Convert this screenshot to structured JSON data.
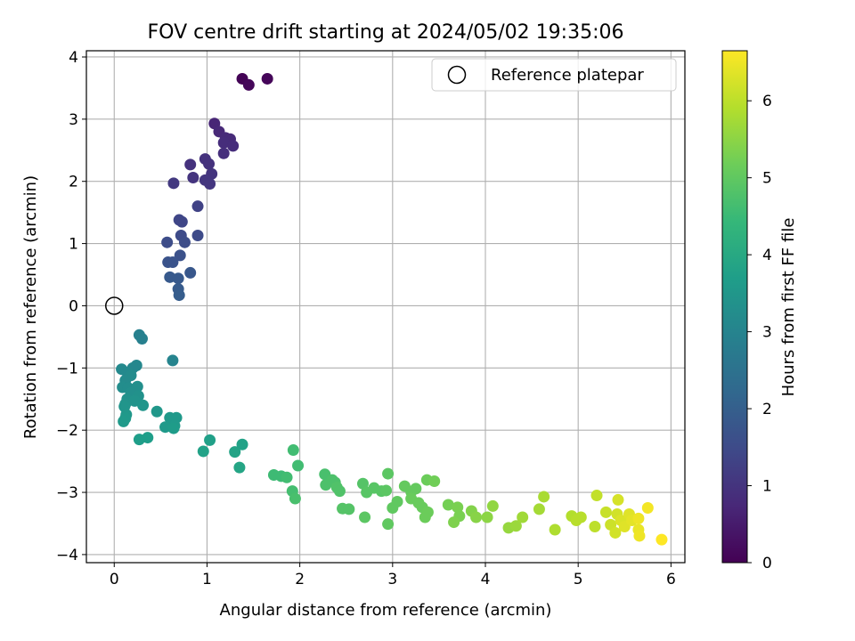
{
  "chart_data": {
    "type": "scatter",
    "title": "FOV centre drift starting at 2024/05/02 19:35:06",
    "xlabel": "Angular distance from reference (arcmin)",
    "ylabel": "Rotation from reference (arcmin)",
    "xlim": [
      -0.3,
      6.15
    ],
    "ylim": [
      -4.13,
      4.1
    ],
    "xticks": [
      0,
      1,
      2,
      3,
      4,
      5,
      6
    ],
    "yticks": [
      -4,
      -3,
      -2,
      -1,
      0,
      1,
      2,
      3,
      4
    ],
    "grid": true,
    "legend": {
      "placement": "top-right",
      "entries": [
        "Reference platepar"
      ]
    },
    "reference_point": {
      "x": 0,
      "y": 0,
      "marker": "open-circle",
      "color": "#000000"
    },
    "colorbar": {
      "label": "Hours from first FF file",
      "range": [
        0,
        6.65
      ],
      "ticks": [
        0,
        1,
        2,
        3,
        4,
        5,
        6
      ],
      "colormap": "viridis"
    },
    "series": [
      {
        "points": [
          {
            "x": 1.38,
            "y": 3.65,
            "c": 0.05
          },
          {
            "x": 1.65,
            "y": 3.65,
            "c": 0.1
          },
          {
            "x": 1.45,
            "y": 3.55,
            "c": 0.12
          },
          {
            "x": 1.08,
            "y": 2.93,
            "c": 0.7
          },
          {
            "x": 1.13,
            "y": 2.8,
            "c": 0.75
          },
          {
            "x": 1.2,
            "y": 2.7,
            "c": 0.8
          },
          {
            "x": 1.25,
            "y": 2.68,
            "c": 0.8
          },
          {
            "x": 1.18,
            "y": 2.62,
            "c": 0.85
          },
          {
            "x": 1.28,
            "y": 2.57,
            "c": 0.85
          },
          {
            "x": 1.18,
            "y": 2.45,
            "c": 0.9
          },
          {
            "x": 0.98,
            "y": 2.36,
            "c": 0.95
          },
          {
            "x": 1.02,
            "y": 2.28,
            "c": 0.95
          },
          {
            "x": 0.82,
            "y": 2.27,
            "c": 0.95
          },
          {
            "x": 1.05,
            "y": 2.12,
            "c": 1.0
          },
          {
            "x": 0.85,
            "y": 2.06,
            "c": 1.0
          },
          {
            "x": 0.98,
            "y": 2.02,
            "c": 1.05
          },
          {
            "x": 1.03,
            "y": 1.96,
            "c": 1.05
          },
          {
            "x": 0.64,
            "y": 1.97,
            "c": 1.1
          },
          {
            "x": 0.9,
            "y": 1.6,
            "c": 1.3
          },
          {
            "x": 0.7,
            "y": 1.38,
            "c": 1.4
          },
          {
            "x": 0.73,
            "y": 1.35,
            "c": 1.4
          },
          {
            "x": 0.72,
            "y": 1.13,
            "c": 1.5
          },
          {
            "x": 0.9,
            "y": 1.13,
            "c": 1.5
          },
          {
            "x": 0.76,
            "y": 1.02,
            "c": 1.55
          },
          {
            "x": 0.57,
            "y": 1.02,
            "c": 1.55
          },
          {
            "x": 0.71,
            "y": 0.81,
            "c": 1.65
          },
          {
            "x": 0.58,
            "y": 0.7,
            "c": 1.7
          },
          {
            "x": 0.63,
            "y": 0.7,
            "c": 1.7
          },
          {
            "x": 0.82,
            "y": 0.53,
            "c": 1.8
          },
          {
            "x": 0.6,
            "y": 0.46,
            "c": 1.85
          },
          {
            "x": 0.69,
            "y": 0.44,
            "c": 1.85
          },
          {
            "x": 0.69,
            "y": 0.27,
            "c": 1.9
          },
          {
            "x": 0.7,
            "y": 0.17,
            "c": 1.95
          },
          {
            "x": 0.27,
            "y": -0.47,
            "c": 2.9
          },
          {
            "x": 0.3,
            "y": -0.53,
            "c": 2.9
          },
          {
            "x": 0.63,
            "y": -0.88,
            "c": 3.0
          },
          {
            "x": 0.24,
            "y": -0.96,
            "c": 3.1
          },
          {
            "x": 0.2,
            "y": -1.0,
            "c": 3.1
          },
          {
            "x": 0.08,
            "y": -1.02,
            "c": 3.15
          },
          {
            "x": 0.14,
            "y": -1.07,
            "c": 3.15
          },
          {
            "x": 0.18,
            "y": -1.12,
            "c": 3.2
          },
          {
            "x": 0.12,
            "y": -1.2,
            "c": 3.2
          },
          {
            "x": 0.09,
            "y": -1.31,
            "c": 3.25
          },
          {
            "x": 0.15,
            "y": -1.32,
            "c": 3.25
          },
          {
            "x": 0.25,
            "y": -1.3,
            "c": 3.3
          },
          {
            "x": 0.18,
            "y": -1.4,
            "c": 3.3
          },
          {
            "x": 0.26,
            "y": -1.45,
            "c": 3.35
          },
          {
            "x": 0.14,
            "y": -1.5,
            "c": 3.35
          },
          {
            "x": 0.22,
            "y": -1.53,
            "c": 3.4
          },
          {
            "x": 0.12,
            "y": -1.58,
            "c": 3.4
          },
          {
            "x": 0.31,
            "y": -1.6,
            "c": 3.45
          },
          {
            "x": 0.11,
            "y": -1.62,
            "c": 3.45
          },
          {
            "x": 0.46,
            "y": -1.7,
            "c": 3.5
          },
          {
            "x": 0.13,
            "y": -1.75,
            "c": 3.5
          },
          {
            "x": 0.6,
            "y": -1.8,
            "c": 3.55
          },
          {
            "x": 0.67,
            "y": -1.8,
            "c": 3.55
          },
          {
            "x": 0.12,
            "y": -1.81,
            "c": 3.55
          },
          {
            "x": 0.1,
            "y": -1.86,
            "c": 3.6
          },
          {
            "x": 0.65,
            "y": -1.93,
            "c": 3.6
          },
          {
            "x": 0.55,
            "y": -1.95,
            "c": 3.6
          },
          {
            "x": 0.64,
            "y": -1.97,
            "c": 3.65
          },
          {
            "x": 0.36,
            "y": -2.12,
            "c": 3.7
          },
          {
            "x": 0.27,
            "y": -2.15,
            "c": 3.7
          },
          {
            "x": 1.03,
            "y": -2.16,
            "c": 3.75
          },
          {
            "x": 1.38,
            "y": -2.23,
            "c": 3.8
          },
          {
            "x": 0.96,
            "y": -2.34,
            "c": 3.8
          },
          {
            "x": 1.3,
            "y": -2.35,
            "c": 3.85
          },
          {
            "x": 1.35,
            "y": -2.6,
            "c": 3.9
          },
          {
            "x": 1.93,
            "y": -2.32,
            "c": 4.6
          },
          {
            "x": 1.98,
            "y": -2.57,
            "c": 4.6
          },
          {
            "x": 1.72,
            "y": -2.72,
            "c": 4.55
          },
          {
            "x": 1.8,
            "y": -2.74,
            "c": 4.55
          },
          {
            "x": 1.86,
            "y": -2.76,
            "c": 4.6
          },
          {
            "x": 1.92,
            "y": -2.98,
            "c": 4.65
          },
          {
            "x": 1.95,
            "y": -3.1,
            "c": 4.7
          },
          {
            "x": 2.27,
            "y": -2.71,
            "c": 4.7
          },
          {
            "x": 2.35,
            "y": -2.8,
            "c": 4.75
          },
          {
            "x": 2.28,
            "y": -2.88,
            "c": 4.75
          },
          {
            "x": 2.38,
            "y": -2.84,
            "c": 4.75
          },
          {
            "x": 2.4,
            "y": -2.92,
            "c": 4.8
          },
          {
            "x": 2.43,
            "y": -2.98,
            "c": 4.8
          },
          {
            "x": 2.46,
            "y": -3.26,
            "c": 4.85
          },
          {
            "x": 2.53,
            "y": -3.27,
            "c": 4.85
          },
          {
            "x": 2.68,
            "y": -2.86,
            "c": 4.85
          },
          {
            "x": 2.72,
            "y": -3.0,
            "c": 4.9
          },
          {
            "x": 2.8,
            "y": -2.93,
            "c": 4.9
          },
          {
            "x": 2.88,
            "y": -2.98,
            "c": 4.9
          },
          {
            "x": 2.95,
            "y": -2.7,
            "c": 4.95
          },
          {
            "x": 2.93,
            "y": -2.97,
            "c": 4.95
          },
          {
            "x": 2.7,
            "y": -3.4,
            "c": 4.95
          },
          {
            "x": 2.95,
            "y": -3.51,
            "c": 5.0
          },
          {
            "x": 3.0,
            "y": -3.25,
            "c": 5.0
          },
          {
            "x": 3.05,
            "y": -3.15,
            "c": 5.0
          },
          {
            "x": 3.13,
            "y": -2.9,
            "c": 5.05
          },
          {
            "x": 3.2,
            "y": -2.99,
            "c": 5.05
          },
          {
            "x": 3.25,
            "y": -2.94,
            "c": 5.05
          },
          {
            "x": 3.2,
            "y": -3.1,
            "c": 5.1
          },
          {
            "x": 3.28,
            "y": -3.17,
            "c": 5.1
          },
          {
            "x": 3.32,
            "y": -3.24,
            "c": 5.1
          },
          {
            "x": 3.38,
            "y": -3.32,
            "c": 5.15
          },
          {
            "x": 3.35,
            "y": -3.4,
            "c": 5.15
          },
          {
            "x": 3.37,
            "y": -2.8,
            "c": 5.15
          },
          {
            "x": 3.45,
            "y": -2.82,
            "c": 5.2
          },
          {
            "x": 3.6,
            "y": -3.2,
            "c": 5.25
          },
          {
            "x": 3.7,
            "y": -3.24,
            "c": 5.3
          },
          {
            "x": 3.72,
            "y": -3.38,
            "c": 5.3
          },
          {
            "x": 3.66,
            "y": -3.48,
            "c": 5.35
          },
          {
            "x": 3.85,
            "y": -3.3,
            "c": 5.4
          },
          {
            "x": 3.9,
            "y": -3.4,
            "c": 5.45
          },
          {
            "x": 4.02,
            "y": -3.4,
            "c": 5.5
          },
          {
            "x": 4.08,
            "y": -3.22,
            "c": 5.55
          },
          {
            "x": 4.25,
            "y": -3.57,
            "c": 5.6
          },
          {
            "x": 4.33,
            "y": -3.54,
            "c": 5.65
          },
          {
            "x": 4.4,
            "y": -3.4,
            "c": 5.7
          },
          {
            "x": 4.58,
            "y": -3.27,
            "c": 5.75
          },
          {
            "x": 4.63,
            "y": -3.07,
            "c": 5.8
          },
          {
            "x": 4.75,
            "y": -3.6,
            "c": 5.85
          },
          {
            "x": 4.93,
            "y": -3.38,
            "c": 5.9
          },
          {
            "x": 4.98,
            "y": -3.45,
            "c": 5.95
          },
          {
            "x": 5.03,
            "y": -3.4,
            "c": 5.95
          },
          {
            "x": 5.18,
            "y": -3.55,
            "c": 6.0
          },
          {
            "x": 5.2,
            "y": -3.05,
            "c": 6.05
          },
          {
            "x": 5.3,
            "y": -3.32,
            "c": 6.1
          },
          {
            "x": 5.35,
            "y": -3.52,
            "c": 6.15
          },
          {
            "x": 5.4,
            "y": -3.65,
            "c": 6.2
          },
          {
            "x": 5.42,
            "y": -3.35,
            "c": 6.2
          },
          {
            "x": 5.43,
            "y": -3.12,
            "c": 6.25
          },
          {
            "x": 5.46,
            "y": -3.45,
            "c": 6.3
          },
          {
            "x": 5.5,
            "y": -3.55,
            "c": 6.35
          },
          {
            "x": 5.55,
            "y": -3.35,
            "c": 6.35
          },
          {
            "x": 5.58,
            "y": -3.45,
            "c": 6.4
          },
          {
            "x": 5.65,
            "y": -3.6,
            "c": 6.45
          },
          {
            "x": 5.66,
            "y": -3.7,
            "c": 6.5
          },
          {
            "x": 5.65,
            "y": -3.42,
            "c": 6.5
          },
          {
            "x": 5.75,
            "y": -3.25,
            "c": 6.55
          },
          {
            "x": 5.9,
            "y": -3.76,
            "c": 6.65
          }
        ]
      }
    ]
  }
}
